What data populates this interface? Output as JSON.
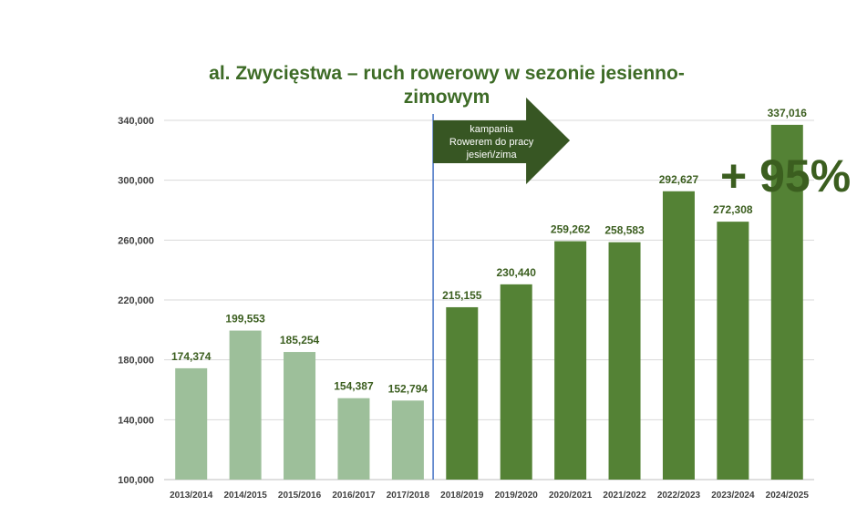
{
  "chart_data": {
    "type": "bar",
    "title": "al. Zwycięstwa – ruch rowerowy w sezonie jesienno-zimowym",
    "categories": [
      "2013/2014",
      "2014/2015",
      "2015/2016",
      "2016/2017",
      "2017/2018",
      "2018/2019",
      "2019/2020",
      "2020/2021",
      "2021/2022",
      "2022/2023",
      "2023/2024",
      "2024/2025"
    ],
    "values": [
      174374,
      199553,
      185254,
      154387,
      152794,
      215155,
      230440,
      259262,
      258583,
      292627,
      272308,
      337016
    ],
    "value_labels": [
      "174,374",
      "199,553",
      "185,254",
      "154,387",
      "152,794",
      "215,155",
      "230,440",
      "259,262",
      "258,583",
      "292,627",
      "272,308",
      "337,016"
    ],
    "yticks": [
      "100,000",
      "140,000",
      "180,000",
      "220,000",
      "260,000",
      "300,000",
      "340,000"
    ],
    "ytick_values": [
      100000,
      140000,
      180000,
      220000,
      260000,
      300000,
      340000
    ],
    "ylim": [
      100000,
      340000
    ],
    "xlabel": "",
    "ylabel": "",
    "grid": true,
    "colors": {
      "before": "#9dbf9a",
      "after": "#548235",
      "labels": "#3b5e1f",
      "divider": "#4472c4",
      "arrow": "#375623"
    },
    "campaign_start_index": 5,
    "annotations": {
      "arrow_lines": [
        "kampania",
        "Rowerem do pracy",
        "jesień/zima"
      ],
      "big_note": "+ 95%"
    }
  }
}
